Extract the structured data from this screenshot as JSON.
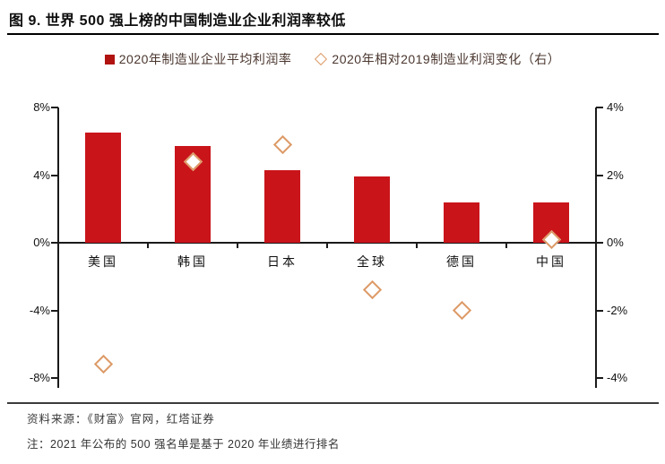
{
  "header": {
    "title": "图 9. 世界 500 强上榜的中国制造业企业利润率较低"
  },
  "legend": [
    {
      "label": "2020年制造业企业平均利润率",
      "marker": "red-square",
      "color": "#b01310"
    },
    {
      "label": "2020年相对2019制造业利润变化（右）",
      "marker": "orange-diamond-outline",
      "color": "#dd9a66"
    }
  ],
  "chart_data": {
    "type": "bar",
    "categories": [
      "美国",
      "韩国",
      "日本",
      "全球",
      "德国",
      "中国"
    ],
    "category_keys": [
      "usa",
      "korea",
      "japan",
      "global",
      "germany",
      "china"
    ],
    "series": [
      {
        "name": "2020年制造业企业平均利润率",
        "type": "bar",
        "axis": "left",
        "values": [
          6.5,
          5.7,
          4.3,
          3.9,
          2.4,
          2.4
        ]
      },
      {
        "name": "2020年相对2019制造业利润变化（右）",
        "type": "scatter-diamond",
        "axis": "right",
        "values": [
          -3.6,
          2.4,
          2.9,
          -1.4,
          -2.0,
          0.1
        ]
      }
    ],
    "left_axis": {
      "tick_labels": [
        "8%",
        "4%",
        "0%",
        "-4%",
        "-8%"
      ],
      "tick_values": [
        8,
        4,
        0,
        -4,
        -8
      ],
      "range": [
        -8,
        8
      ]
    },
    "right_axis": {
      "tick_labels": [
        "4%",
        "2%",
        "0%",
        "-2%",
        "-4%"
      ],
      "tick_values": [
        4,
        2,
        0,
        -2,
        -4
      ],
      "range": [
        -4,
        4
      ]
    },
    "grid": false,
    "legend_position": "top-center",
    "colors": {
      "bar": "#c9141a",
      "diamond_border": "#dd9a66",
      "diamond_fill": "#ffffff",
      "axis": "#1a1a1a"
    }
  },
  "footer": {
    "source": "资料来源：《财富》官网，红塔证券",
    "note": "注：2021 年公布的 500 强名单是基于 2020 年业绩进行排名"
  }
}
